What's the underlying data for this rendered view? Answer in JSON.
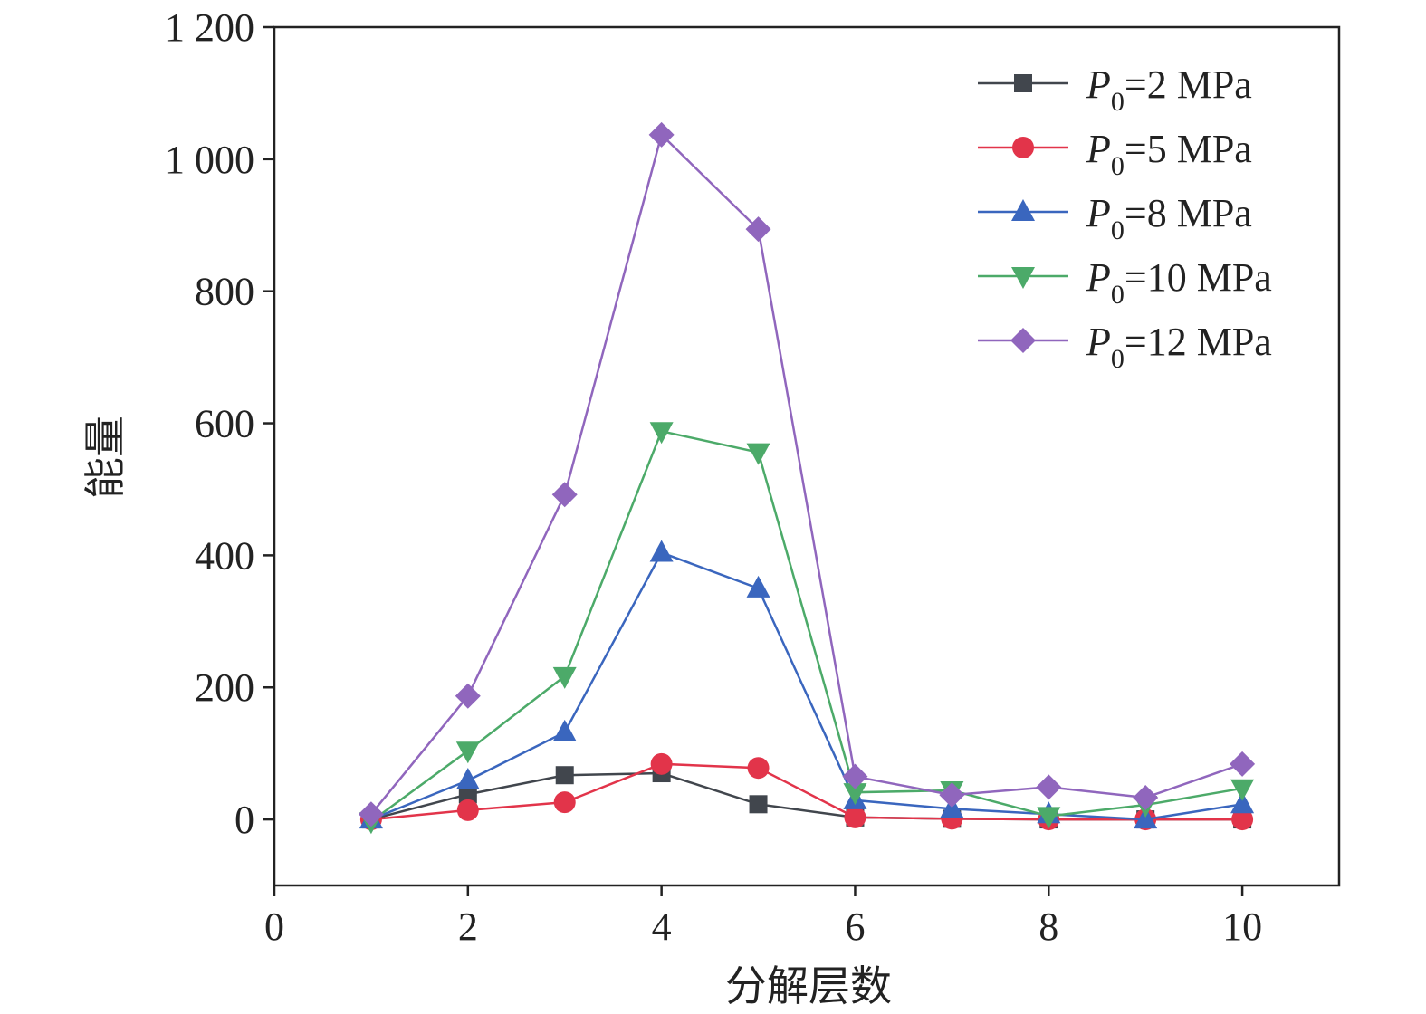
{
  "chart_data": {
    "type": "line",
    "title": "",
    "xlabel": "分解层数",
    "ylabel": "能量",
    "xlim": [
      0,
      11
    ],
    "ylim": [
      -100,
      1200
    ],
    "xticks": [
      0,
      2,
      4,
      6,
      8,
      10
    ],
    "xtick_labels": [
      "0",
      "2",
      "4",
      "6",
      "8",
      "10"
    ],
    "yticks": [
      0,
      200,
      400,
      600,
      800,
      1000,
      1200
    ],
    "ytick_labels": [
      "0",
      "200",
      "400",
      "600",
      "800",
      "1 000",
      "1 200"
    ],
    "grid": false,
    "legend_position": "top-right",
    "x": [
      1,
      2,
      3,
      4,
      5,
      6,
      7,
      8,
      9,
      10
    ],
    "series": [
      {
        "name": "P0=2 MPa",
        "label_main": "P",
        "label_sub": "0",
        "label_rest": "=2 MPa",
        "color": "#41464d",
        "marker": "square",
        "values": [
          0,
          38,
          67,
          70,
          23,
          3,
          1,
          0,
          0,
          0
        ]
      },
      {
        "name": "P0=5 MPa",
        "label_main": "P",
        "label_sub": "0",
        "label_rest": "=5 MPa",
        "color": "#e2344a",
        "marker": "circle",
        "values": [
          0,
          14,
          26,
          84,
          78,
          3,
          1,
          0,
          0,
          0
        ]
      },
      {
        "name": "P0=8 MPa",
        "label_main": "P",
        "label_sub": "0",
        "label_rest": "=8 MPa",
        "color": "#3a66be",
        "marker": "triangle-up",
        "values": [
          0,
          59,
          132,
          404,
          350,
          29,
          16,
          8,
          0,
          23
        ]
      },
      {
        "name": "P0=10 MPa",
        "label_main": "P",
        "label_sub": "0",
        "label_rest": "=10 MPa",
        "color": "#4caa69",
        "marker": "triangle-down",
        "values": [
          -3,
          104,
          217,
          588,
          556,
          41,
          44,
          5,
          22,
          47
        ]
      },
      {
        "name": "P0=12 MPa",
        "label_main": "P",
        "label_sub": "0",
        "label_rest": "=12 MPa",
        "color": "#9066bd",
        "marker": "diamond",
        "values": [
          8,
          187,
          492,
          1037,
          894,
          65,
          37,
          49,
          33,
          84
        ]
      }
    ]
  }
}
